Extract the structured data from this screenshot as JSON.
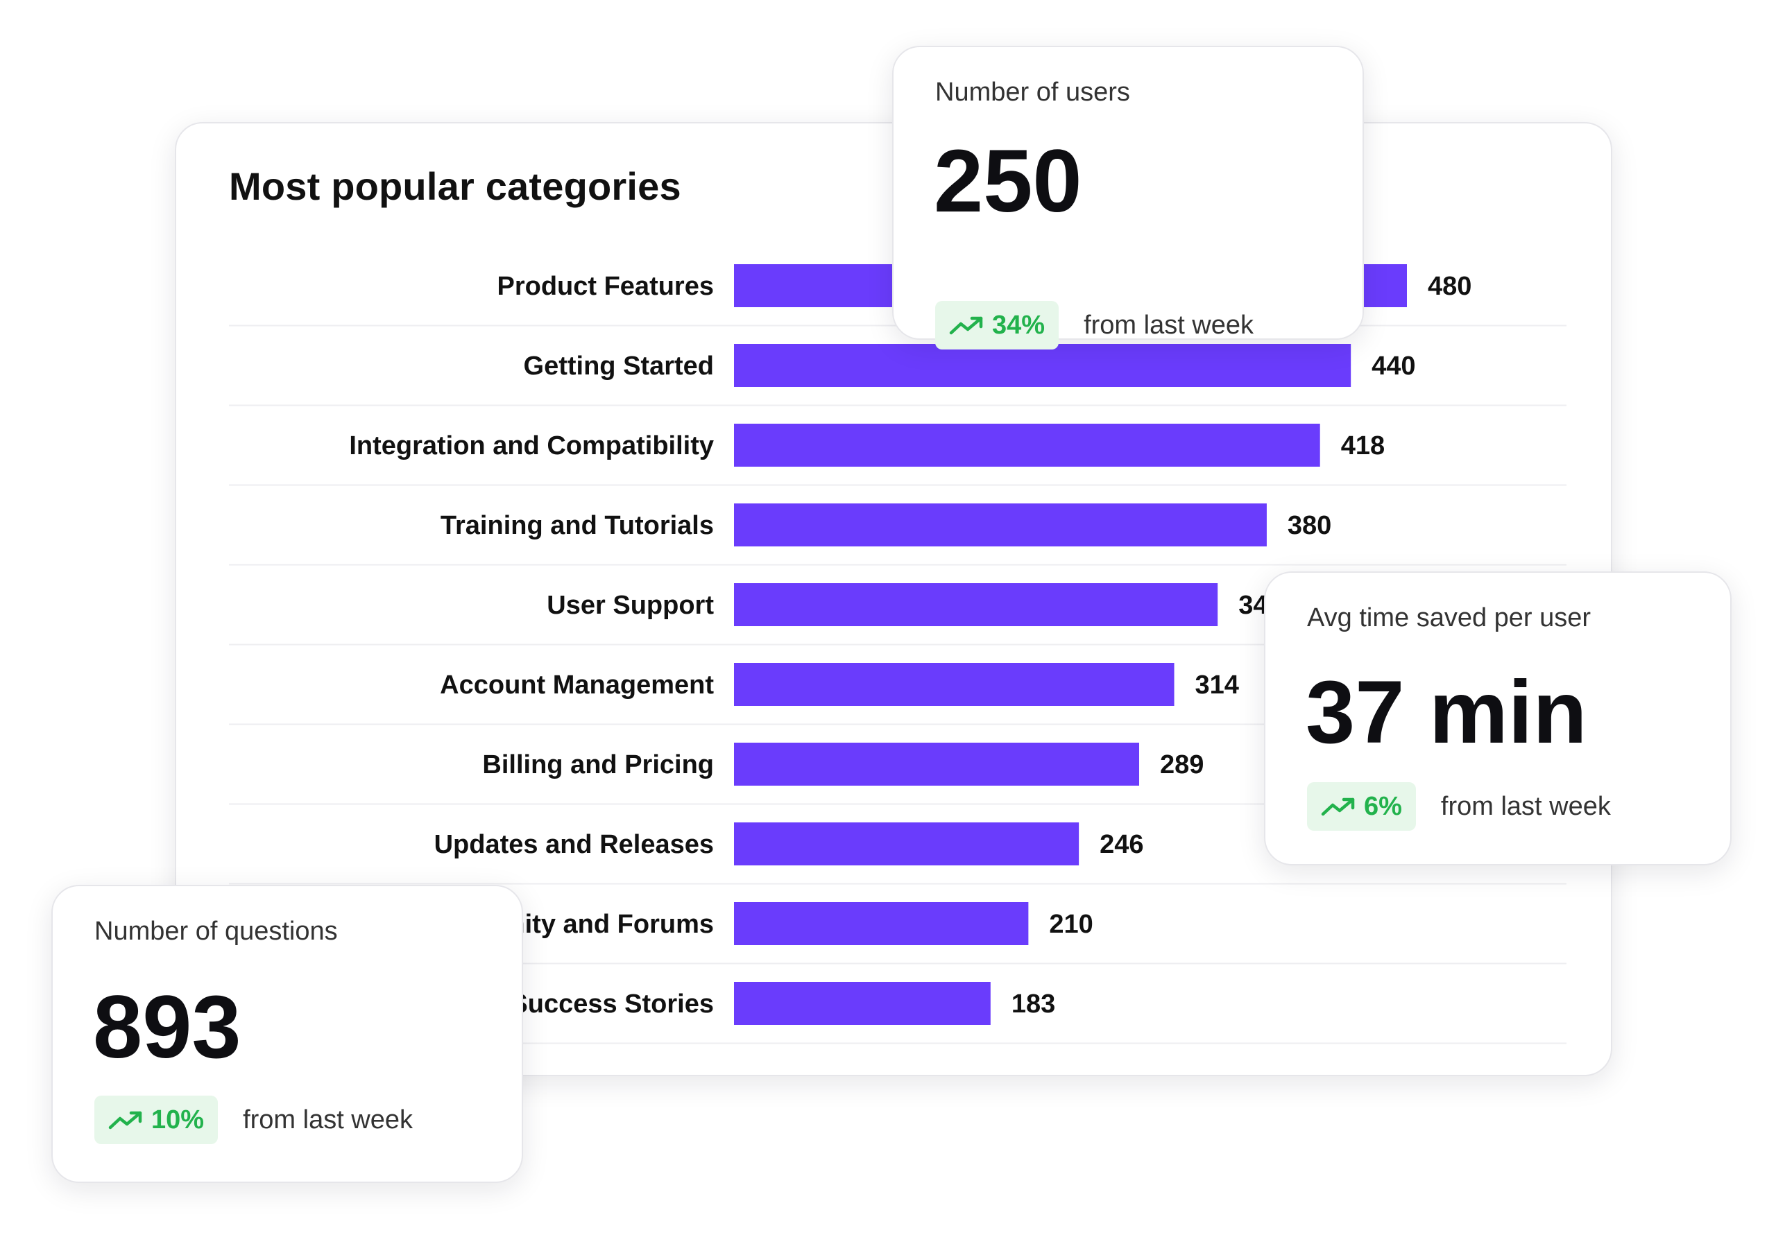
{
  "chart_data": {
    "type": "bar",
    "orientation": "horizontal",
    "title": "Most popular categories",
    "categories": [
      "Product Features",
      "Getting Started",
      "Integration and Compatibility",
      "Training and Tutorials",
      "User Support",
      "Account Management",
      "Billing and Pricing",
      "Updates and Releases",
      "Community and Forums",
      "Success Stories"
    ],
    "values": [
      480,
      440,
      418,
      380,
      345,
      314,
      289,
      246,
      210,
      183
    ],
    "xlim": [
      0,
      480
    ],
    "grid": false,
    "bar_color": "#6a3cfc"
  },
  "stats": {
    "users": {
      "label": "Number of users",
      "value": "250",
      "change": "34%",
      "change_text": "from last week"
    },
    "time_saved": {
      "label": "Avg time saved per user",
      "value": "37 min",
      "change": "6%",
      "change_text": "from last week"
    },
    "questions": {
      "label": "Number of questions",
      "value": "893",
      "change": "10%",
      "change_text": "from last week"
    }
  },
  "colors": {
    "accent": "#6a3cfc",
    "positive": "#22b24c",
    "positive_bg": "#e7f7ea"
  },
  "icons": {
    "trend": "trending-up-icon"
  }
}
